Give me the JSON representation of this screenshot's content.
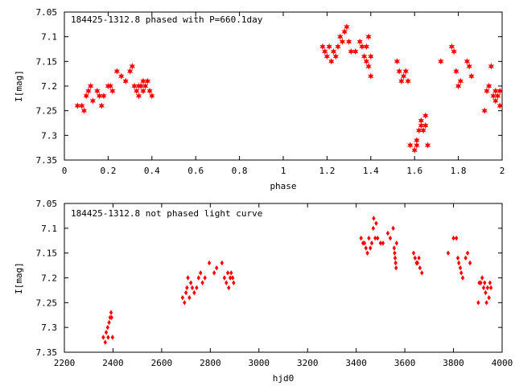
{
  "chart_data": [
    {
      "type": "scatter",
      "title": "184425-1312.8 phased with P=660.1day",
      "xlabel": "phase",
      "ylabel": "I[mag]",
      "xlim": [
        0,
        2
      ],
      "ylim": [
        7.35,
        7.05
      ],
      "y_inverted": true,
      "grid": false,
      "legend": "none",
      "marker": "filled-star",
      "color": "#ff0000",
      "xticks": [
        "0",
        "0.2",
        "0.4",
        "0.6",
        "0.8",
        "1",
        "1.2",
        "1.4",
        "1.6",
        "1.8",
        "2"
      ],
      "yticks": [
        "7.05",
        "7.1",
        "7.15",
        "7.2",
        "7.25",
        "7.3",
        "7.35"
      ],
      "points": [
        [
          0.06,
          7.24
        ],
        [
          0.08,
          7.24
        ],
        [
          0.09,
          7.25
        ],
        [
          0.1,
          7.22
        ],
        [
          0.11,
          7.21
        ],
        [
          0.12,
          7.2
        ],
        [
          0.13,
          7.23
        ],
        [
          0.15,
          7.21
        ],
        [
          0.16,
          7.22
        ],
        [
          0.17,
          7.24
        ],
        [
          0.18,
          7.22
        ],
        [
          0.2,
          7.2
        ],
        [
          0.21,
          7.2
        ],
        [
          0.22,
          7.21
        ],
        [
          0.24,
          7.17
        ],
        [
          0.26,
          7.18
        ],
        [
          0.28,
          7.19
        ],
        [
          0.3,
          7.17
        ],
        [
          0.31,
          7.16
        ],
        [
          0.32,
          7.2
        ],
        [
          0.33,
          7.21
        ],
        [
          0.34,
          7.2
        ],
        [
          0.34,
          7.22
        ],
        [
          0.35,
          7.2
        ],
        [
          0.36,
          7.19
        ],
        [
          0.37,
          7.2
        ],
        [
          0.38,
          7.19
        ],
        [
          0.39,
          7.21
        ],
        [
          0.4,
          7.22
        ],
        [
          0.36,
          7.21
        ],
        [
          1.18,
          7.12
        ],
        [
          1.19,
          7.13
        ],
        [
          1.2,
          7.14
        ],
        [
          1.21,
          7.12
        ],
        [
          1.22,
          7.15
        ],
        [
          1.23,
          7.13
        ],
        [
          1.24,
          7.14
        ],
        [
          1.25,
          7.12
        ],
        [
          1.26,
          7.1
        ],
        [
          1.27,
          7.11
        ],
        [
          1.28,
          7.09
        ],
        [
          1.29,
          7.08
        ],
        [
          1.3,
          7.11
        ],
        [
          1.31,
          7.13
        ],
        [
          1.33,
          7.13
        ],
        [
          1.35,
          7.11
        ],
        [
          1.36,
          7.12
        ],
        [
          1.37,
          7.14
        ],
        [
          1.38,
          7.15
        ],
        [
          1.39,
          7.1
        ],
        [
          1.39,
          7.16
        ],
        [
          1.4,
          7.18
        ],
        [
          1.4,
          7.14
        ],
        [
          1.38,
          7.12
        ],
        [
          1.52,
          7.15
        ],
        [
          1.53,
          7.17
        ],
        [
          1.54,
          7.19
        ],
        [
          1.55,
          7.18
        ],
        [
          1.56,
          7.17
        ],
        [
          1.57,
          7.19
        ],
        [
          1.58,
          7.32
        ],
        [
          1.6,
          7.33
        ],
        [
          1.61,
          7.31
        ],
        [
          1.61,
          7.32
        ],
        [
          1.62,
          7.29
        ],
        [
          1.63,
          7.28
        ],
        [
          1.63,
          7.27
        ],
        [
          1.64,
          7.29
        ],
        [
          1.65,
          7.26
        ],
        [
          1.65,
          7.28
        ],
        [
          1.66,
          7.32
        ],
        [
          1.72,
          7.15
        ],
        [
          1.77,
          7.12
        ],
        [
          1.78,
          7.13
        ],
        [
          1.79,
          7.17
        ],
        [
          1.8,
          7.2
        ],
        [
          1.81,
          7.19
        ],
        [
          1.84,
          7.15
        ],
        [
          1.85,
          7.16
        ],
        [
          1.86,
          7.18
        ],
        [
          1.92,
          7.25
        ],
        [
          1.93,
          7.21
        ],
        [
          1.94,
          7.2
        ],
        [
          1.95,
          7.16
        ],
        [
          1.96,
          7.22
        ],
        [
          1.97,
          7.21
        ],
        [
          1.97,
          7.23
        ],
        [
          1.98,
          7.22
        ],
        [
          1.99,
          7.24
        ],
        [
          1.99,
          7.21
        ]
      ]
    },
    {
      "type": "scatter",
      "title": "184425-1312.8 not phased light curve",
      "xlabel": "hjd0",
      "ylabel": "I[mag]",
      "xlim": [
        2200,
        4000
      ],
      "ylim": [
        7.35,
        7.05
      ],
      "y_inverted": true,
      "grid": false,
      "legend": "none",
      "marker": "filled-diamond",
      "color": "#ff0000",
      "xticks": [
        "2200",
        "2400",
        "2600",
        "2800",
        "3000",
        "3200",
        "3400",
        "3600",
        "3800",
        "4000"
      ],
      "yticks": [
        "7.05",
        "7.1",
        "7.15",
        "7.2",
        "7.25",
        "7.3",
        "7.35"
      ],
      "points": [
        [
          2360,
          7.32
        ],
        [
          2368,
          7.33
        ],
        [
          2372,
          7.31
        ],
        [
          2378,
          7.3
        ],
        [
          2380,
          7.32
        ],
        [
          2384,
          7.29
        ],
        [
          2388,
          7.28
        ],
        [
          2392,
          7.27
        ],
        [
          2394,
          7.28
        ],
        [
          2398,
          7.32
        ],
        [
          2686,
          7.24
        ],
        [
          2694,
          7.25
        ],
        [
          2700,
          7.23
        ],
        [
          2704,
          7.22
        ],
        [
          2708,
          7.2
        ],
        [
          2714,
          7.24
        ],
        [
          2720,
          7.21
        ],
        [
          2726,
          7.22
        ],
        [
          2734,
          7.23
        ],
        [
          2744,
          7.22
        ],
        [
          2752,
          7.2
        ],
        [
          2760,
          7.19
        ],
        [
          2768,
          7.21
        ],
        [
          2778,
          7.2
        ],
        [
          2796,
          7.17
        ],
        [
          2816,
          7.19
        ],
        [
          2826,
          7.18
        ],
        [
          2848,
          7.17
        ],
        [
          2858,
          7.2
        ],
        [
          2866,
          7.21
        ],
        [
          2872,
          7.19
        ],
        [
          2876,
          7.22
        ],
        [
          2882,
          7.2
        ],
        [
          2886,
          7.19
        ],
        [
          2892,
          7.2
        ],
        [
          2896,
          7.21
        ],
        [
          3420,
          7.12
        ],
        [
          3428,
          7.13
        ],
        [
          3434,
          7.13
        ],
        [
          3440,
          7.14
        ],
        [
          3446,
          7.15
        ],
        [
          3452,
          7.12
        ],
        [
          3458,
          7.14
        ],
        [
          3464,
          7.13
        ],
        [
          3470,
          7.1
        ],
        [
          3472,
          7.08
        ],
        [
          3478,
          7.12
        ],
        [
          3482,
          7.09
        ],
        [
          3488,
          7.12
        ],
        [
          3500,
          7.13
        ],
        [
          3510,
          7.13
        ],
        [
          3530,
          7.11
        ],
        [
          3540,
          7.12
        ],
        [
          3552,
          7.1
        ],
        [
          3556,
          7.14
        ],
        [
          3558,
          7.15
        ],
        [
          3560,
          7.16
        ],
        [
          3562,
          7.17
        ],
        [
          3564,
          7.18
        ],
        [
          3566,
          7.13
        ],
        [
          3636,
          7.15
        ],
        [
          3642,
          7.16
        ],
        [
          3648,
          7.17
        ],
        [
          3652,
          7.17
        ],
        [
          3658,
          7.16
        ],
        [
          3662,
          7.18
        ],
        [
          3670,
          7.19
        ],
        [
          3778,
          7.15
        ],
        [
          3800,
          7.12
        ],
        [
          3812,
          7.12
        ],
        [
          3818,
          7.16
        ],
        [
          3822,
          7.17
        ],
        [
          3828,
          7.18
        ],
        [
          3832,
          7.19
        ],
        [
          3838,
          7.2
        ],
        [
          3850,
          7.16
        ],
        [
          3858,
          7.15
        ],
        [
          3868,
          7.17
        ],
        [
          3902,
          7.25
        ],
        [
          3906,
          7.21
        ],
        [
          3912,
          7.21
        ],
        [
          3918,
          7.2
        ],
        [
          3924,
          7.22
        ],
        [
          3928,
          7.21
        ],
        [
          3932,
          7.23
        ],
        [
          3936,
          7.25
        ],
        [
          3940,
          7.22
        ],
        [
          3946,
          7.24
        ],
        [
          3950,
          7.21
        ],
        [
          3954,
          7.22
        ]
      ]
    }
  ]
}
